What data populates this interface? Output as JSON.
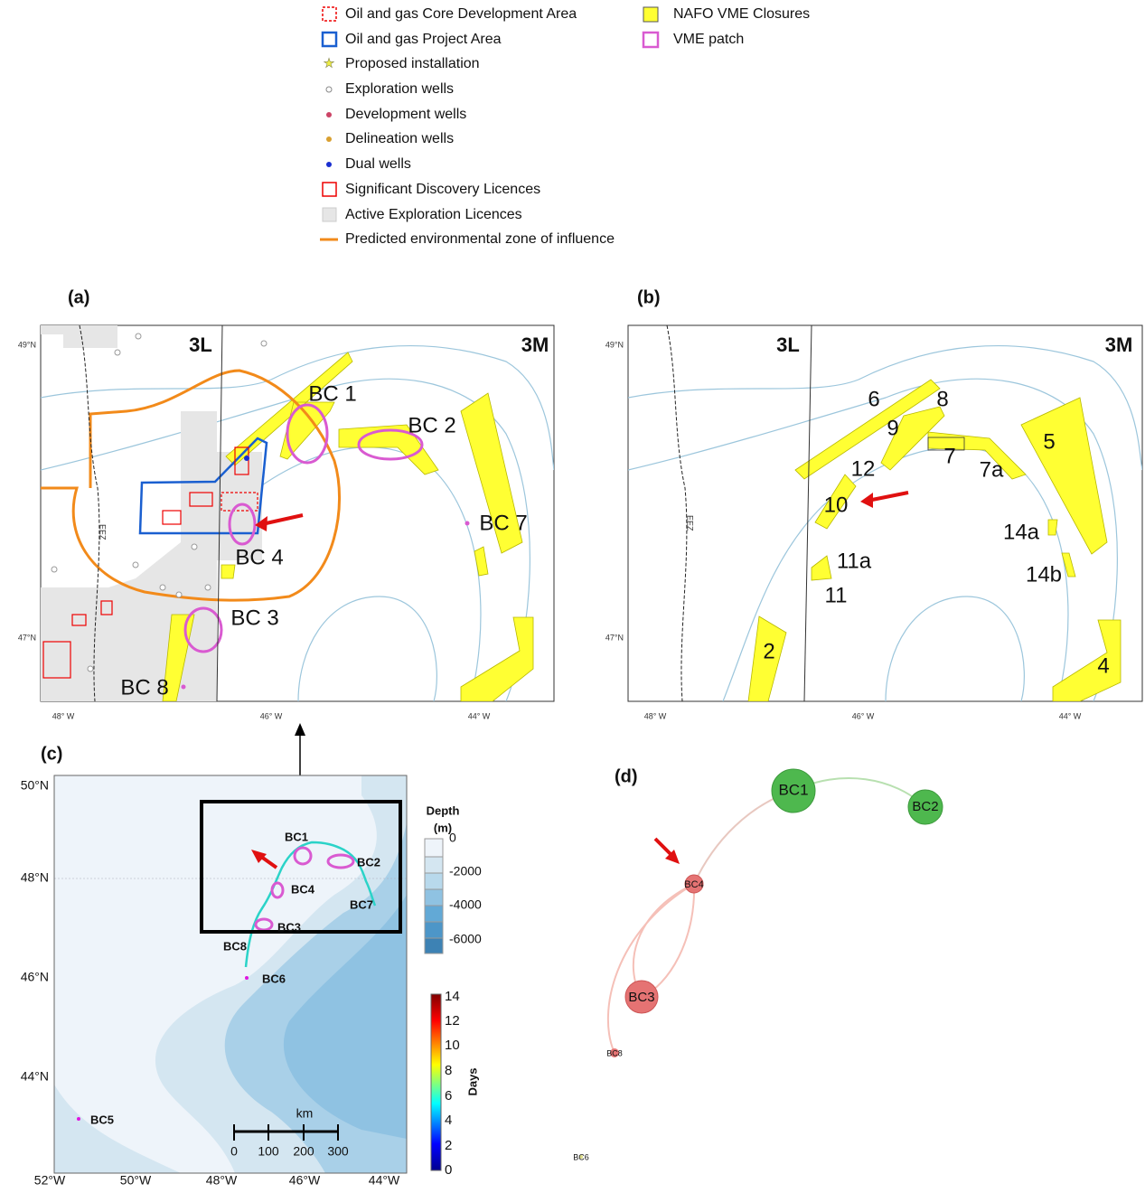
{
  "legend": {
    "items": [
      "Oil and gas Core Development Area",
      "Oil and gas Project Area",
      "Proposed installation",
      "Exploration wells",
      "Development wells",
      "Delineation wells",
      "Dual wells",
      "Significant Discovery Licences",
      "Active Exploration Licences",
      "Predicted environmental zone of influence",
      "NAFO VME Closures",
      "VME patch"
    ]
  },
  "panel_a": {
    "label": "(a)",
    "zones": [
      "3L",
      "3M"
    ],
    "eez": "EEZ",
    "lat": [
      "49°N",
      "47°N"
    ],
    "lon": [
      "48° W",
      "46° W",
      "44° W"
    ],
    "sites": [
      "BC 1",
      "BC 2",
      "BC 7",
      "BC 4",
      "BC 3",
      "BC 8"
    ]
  },
  "panel_b": {
    "label": "(b)",
    "zones": [
      "3L",
      "3M"
    ],
    "eez": "EEZ",
    "lat": [
      "49°N",
      "47°N"
    ],
    "lon": [
      "48° W",
      "46° W",
      "44° W"
    ],
    "closures": [
      "6",
      "8",
      "9",
      "7",
      "7a",
      "5",
      "12",
      "10",
      "14a",
      "11a",
      "14b",
      "11",
      "2",
      "4"
    ]
  },
  "panel_c": {
    "label": "(c)",
    "lat": [
      "50°N",
      "48°N",
      "46°N",
      "44°N"
    ],
    "lon": [
      "52°W",
      "50°W",
      "48°W",
      "46°W",
      "44°W"
    ],
    "sites": [
      "BC1",
      "BC2",
      "BC4",
      "BC7",
      "BC3",
      "BC8",
      "BC6",
      "BC5"
    ],
    "depth_title": [
      "Depth",
      "(m)"
    ],
    "depth_ticks": [
      0,
      -2000,
      -4000,
      -6000
    ],
    "scale_unit": "km",
    "scale_ticks": [
      0,
      100,
      200,
      300
    ],
    "days_title": "Days",
    "days_ticks": [
      14,
      12,
      10,
      8,
      6,
      4,
      2,
      0
    ]
  },
  "panel_d": {
    "label": "(d)",
    "nodes": [
      "BC1",
      "BC2",
      "BC4",
      "BC3",
      "BC8",
      "BC6"
    ]
  }
}
